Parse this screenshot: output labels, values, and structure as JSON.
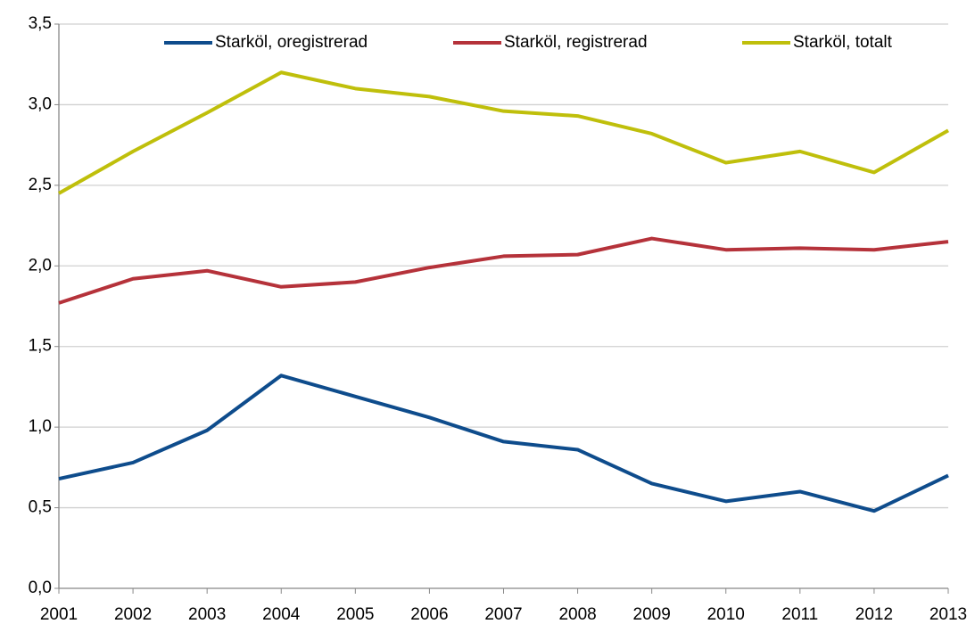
{
  "chart_data": {
    "type": "line",
    "categories": [
      "2001",
      "2002",
      "2003",
      "2004",
      "2005",
      "2006",
      "2007",
      "2008",
      "2009",
      "2010",
      "2011",
      "2012",
      "2013"
    ],
    "series": [
      {
        "name": "Starköl, oregistrerad",
        "color": "#0e4c8c",
        "values": [
          0.68,
          0.78,
          0.98,
          1.32,
          1.19,
          1.06,
          0.91,
          0.86,
          0.65,
          0.54,
          0.6,
          0.48,
          0.7
        ]
      },
      {
        "name": "Starköl, registrerad",
        "color": "#b5323a",
        "values": [
          1.77,
          1.92,
          1.97,
          1.87,
          1.9,
          1.99,
          2.06,
          2.07,
          2.17,
          2.1,
          2.11,
          2.1,
          2.15
        ]
      },
      {
        "name": "Starköl, totalt",
        "color": "#bfbf0b",
        "values": [
          2.45,
          2.71,
          2.95,
          3.2,
          3.1,
          3.05,
          2.96,
          2.93,
          2.82,
          2.64,
          2.71,
          2.58,
          2.84
        ]
      }
    ],
    "ylim": [
      0,
      3.5
    ],
    "yticks": [
      {
        "value": 0,
        "label": "0,0"
      },
      {
        "value": 0.5,
        "label": "0,5"
      },
      {
        "value": 1,
        "label": "1,0"
      },
      {
        "value": 1.5,
        "label": "1,5"
      },
      {
        "value": 2,
        "label": "2,0"
      },
      {
        "value": 2.5,
        "label": "2,5"
      },
      {
        "value": 3,
        "label": "3,0"
      },
      {
        "value": 3.5,
        "label": "3,5"
      }
    ],
    "grid": true,
    "legend": "top"
  }
}
